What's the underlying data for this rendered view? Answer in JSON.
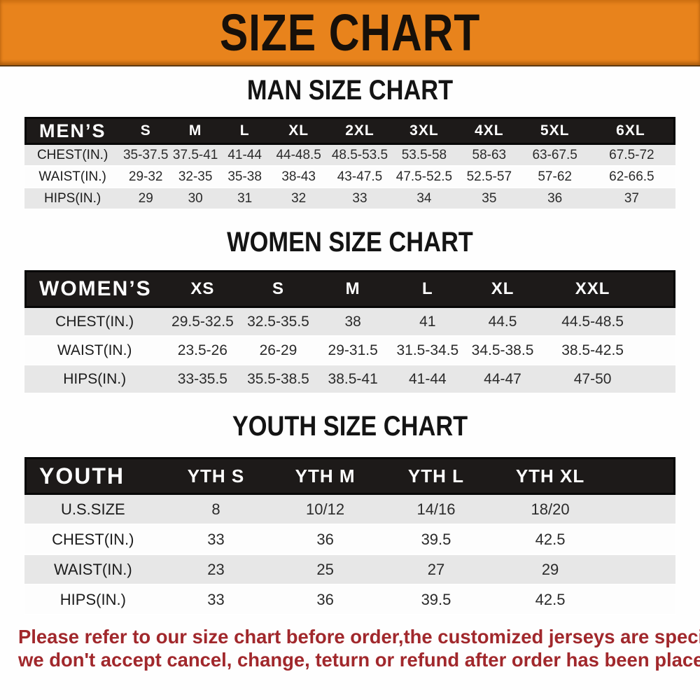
{
  "banner": {
    "title": "SIZE CHART",
    "bg_color": "#e8831c",
    "text_color": "#171009"
  },
  "sections": [
    {
      "heading": "MAN SIZE CHART",
      "table": {
        "header": [
          "MEN’S",
          "S",
          "M",
          "L",
          "XL",
          "2XL",
          "3XL",
          "4XL",
          "5XL",
          "6XL"
        ],
        "rows": [
          {
            "label": "CHEST(IN.)",
            "values": [
              "35-37.5",
              "37.5-41",
              "41-44",
              "44-48.5",
              "48.5-53.5",
              "53.5-58",
              "58-63",
              "63-67.5",
              "67.5-72"
            ]
          },
          {
            "label": "WAIST(IN.)",
            "values": [
              "29-32",
              "32-35",
              "35-38",
              "38-43",
              "43-47.5",
              "47.5-52.5",
              "52.5-57",
              "57-62",
              "62-66.5"
            ]
          },
          {
            "label": "HIPS(IN.)",
            "values": [
              "29",
              "30",
              "31",
              "32",
              "33",
              "34",
              "35",
              "36",
              "37"
            ]
          }
        ]
      }
    },
    {
      "heading": "WOMEN SIZE CHART",
      "table": {
        "header": [
          "WOMEN’S",
          "XS",
          "S",
          "M",
          "L",
          "XL",
          "XXL"
        ],
        "rows": [
          {
            "label": "CHEST(IN.)",
            "values": [
              "29.5-32.5",
              "32.5-35.5",
              "38",
              "41",
              "44.5",
              "44.5-48.5"
            ]
          },
          {
            "label": "WAIST(IN.)",
            "values": [
              "23.5-26",
              "26-29",
              "29-31.5",
              "31.5-34.5",
              "34.5-38.5",
              "38.5-42.5"
            ]
          },
          {
            "label": "HIPS(IN.)",
            "values": [
              "33-35.5",
              "35.5-38.5",
              "38.5-41",
              "41-44",
              "44-47",
              "47-50"
            ]
          }
        ]
      }
    },
    {
      "heading": "YOUTH SIZE CHART",
      "table": {
        "header": [
          "YOUTH",
          "YTH S",
          "YTH M",
          "YTH L",
          "YTH XL"
        ],
        "rows": [
          {
            "label": "U.S.SIZE",
            "values": [
              "8",
              "10/12",
              "14/16",
              "18/20"
            ]
          },
          {
            "label": "CHEST(IN.)",
            "values": [
              "33",
              "36",
              "39.5",
              "42.5"
            ]
          },
          {
            "label": "WAIST(IN.)",
            "values": [
              "23",
              "25",
              "27",
              "29"
            ]
          },
          {
            "label": "HIPS(IN.)",
            "values": [
              "33",
              "36",
              "39.5",
              "42.5"
            ]
          }
        ]
      }
    }
  ],
  "footer": {
    "lines": [
      "Please refer to our size chart before order,the customized jerseys are special products,",
      "we don't accept cancel, change, teturn or refund after order has been placed!"
    ],
    "text_color": "#a1282c"
  },
  "colors": {
    "header_bar": "#1d1a19",
    "row_alt_gray": "#e7e7e7",
    "row_white": "#fdfdfd"
  }
}
